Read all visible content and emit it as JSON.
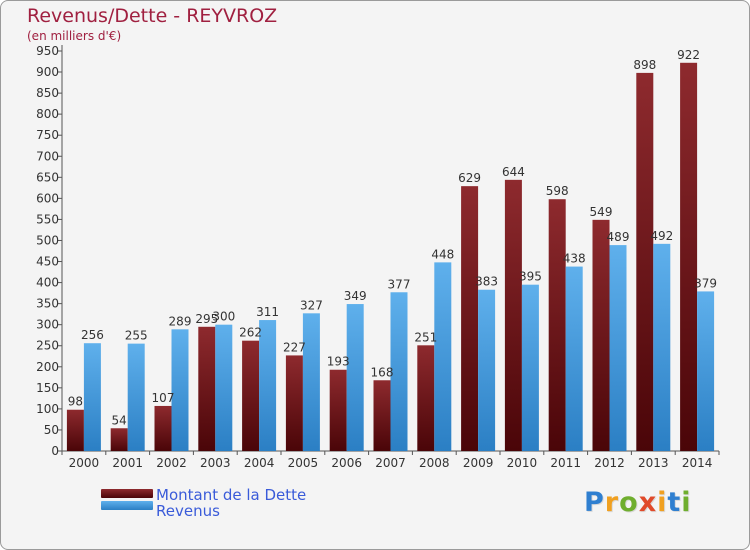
{
  "header": {
    "title": "Revenus/Dette - REYVROZ",
    "subtitle": "(en milliers d'€)"
  },
  "colors": {
    "title": "#a02040",
    "dette": "#7a1a1e",
    "revenus": "#4a9fe0",
    "legend_text": "#3a5bd9"
  },
  "legend": {
    "dette_label": "Montant de la Dette",
    "revenus_label": "Revenus"
  },
  "logo": {
    "text": "Proxiti",
    "letter_colors": [
      "#2f7fd0",
      "#f0a020",
      "#6fae2e",
      "#e04a2a",
      "#f0a020",
      "#2f7fd0",
      "#6fae2e"
    ]
  },
  "chart_data": {
    "type": "bar",
    "title": "Revenus/Dette - REYVROZ",
    "ylabel": "(en milliers d'€)",
    "xlabel": "",
    "ylim": [
      0,
      950
    ],
    "ytick_step": 50,
    "grid": false,
    "legend_position": "bottom-left",
    "categories": [
      "2000",
      "2001",
      "2002",
      "2003",
      "2004",
      "2005",
      "2006",
      "2007",
      "2008",
      "2009",
      "2010",
      "2011",
      "2012",
      "2013",
      "2014"
    ],
    "series": [
      {
        "name": "Montant de la Dette",
        "values": [
          98,
          54,
          107,
          295,
          262,
          227,
          193,
          168,
          251,
          629,
          644,
          598,
          549,
          898,
          922
        ]
      },
      {
        "name": "Revenus",
        "values": [
          256,
          255,
          289,
          300,
          311,
          327,
          349,
          377,
          448,
          383,
          395,
          438,
          489,
          492,
          379
        ]
      }
    ]
  }
}
